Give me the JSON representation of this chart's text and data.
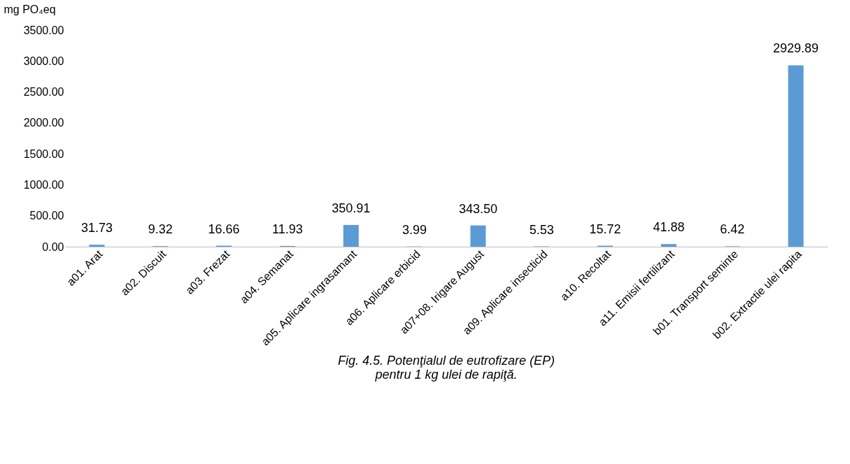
{
  "chart_data": {
    "type": "bar",
    "ylabel": "mg PO₄eq",
    "categories": [
      "a01. Arat",
      "a02. Discuit",
      "a03. Frezat",
      "a04. Semanat",
      "a05. Aplicare ingrasamant",
      "a06. Aplicare erbicid",
      "a07+08. Irigare August",
      "a09. Aplicare insecticid",
      "a10. Recoltat",
      "a11. Emisii fertilizant",
      "b01. Transport seminte",
      "b02. Extractie ulei rapita"
    ],
    "values": [
      31.73,
      9.32,
      16.66,
      11.93,
      350.91,
      3.99,
      343.5,
      5.53,
      15.72,
      41.88,
      6.42,
      2929.89
    ],
    "value_labels": [
      "31.73",
      "9.32",
      "16.66",
      "11.93",
      "350.91",
      "3.99",
      "343.50",
      "5.53",
      "15.72",
      "41.88",
      "6.42",
      "2929.89"
    ],
    "color": "#5b9bd5",
    "ylim": [
      0,
      3500
    ],
    "yticks": [
      {
        "value": 0,
        "label": "0.00"
      },
      {
        "value": 500,
        "label": "500.00"
      },
      {
        "value": 1000,
        "label": "1000.00"
      },
      {
        "value": 1500,
        "label": "1500.00"
      },
      {
        "value": 2000,
        "label": "2000.00"
      },
      {
        "value": 2500,
        "label": "2500.00"
      },
      {
        "value": 3000,
        "label": "3000.00"
      },
      {
        "value": 3500,
        "label": "3500.00"
      }
    ],
    "grid": false,
    "annotations": [
      "Fig. 4.5. Potenţialul de eutrofizare (EP)",
      "pentru 1 kg ulei de rapiţă."
    ]
  }
}
